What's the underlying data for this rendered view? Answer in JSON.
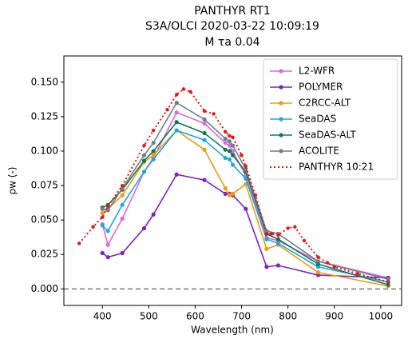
{
  "chart_data": {
    "type": "line",
    "title": [
      "PANTHYR RT1",
      "S3A/OLCI 2020-03-22 10:09:19",
      "M τa 0.04"
    ],
    "x_label": "Wavelength (nm)",
    "y_label": "ρw (-)",
    "xlim": [
      317,
      1045
    ],
    "ylim": [
      -0.012,
      0.169
    ],
    "xticks": [
      400,
      500,
      600,
      700,
      800,
      900,
      1000
    ],
    "yticks": [
      {
        "value": 0,
        "label": "0.000"
      },
      {
        "value": 0.025,
        "label": "0.025"
      },
      {
        "value": 0.05,
        "label": "0.050"
      },
      {
        "value": 0.075,
        "label": "0.075"
      },
      {
        "value": 0.1,
        "label": "0.100"
      },
      {
        "value": 0.125,
        "label": "0.125"
      },
      {
        "value": 0.15,
        "label": "0.150"
      }
    ],
    "hline": 0,
    "legend": "upper right",
    "series": [
      {
        "name": "L2-WFR",
        "color": "#dd66dd",
        "style": "solid",
        "x": [
          400,
          412,
          443,
          490,
          510,
          560,
          620,
          665,
          674,
          681,
          709,
          754,
          779,
          865,
          1016
        ],
        "values": [
          0.047,
          0.032,
          0.051,
          0.085,
          0.095,
          0.128,
          0.12,
          0.106,
          0.104,
          0.1,
          0.082,
          0.037,
          0.035,
          0.02,
          0.008
        ]
      },
      {
        "name": "POLYMER",
        "color": "#7b22c8",
        "style": "solid",
        "x": [
          400,
          412,
          443,
          490,
          510,
          560,
          620,
          665,
          674,
          681,
          709,
          754,
          779,
          865,
          1016
        ],
        "values": [
          0.026,
          0.023,
          0.026,
          0.044,
          0.054,
          0.083,
          0.079,
          0.069,
          0.069,
          0.068,
          0.058,
          0.016,
          0.017,
          0.01,
          0.008
        ]
      },
      {
        "name": "C2RCC-ALT",
        "color": "#f29b0b",
        "style": "solid",
        "x": [
          400,
          412,
          443,
          490,
          510,
          560,
          620,
          665,
          674,
          681,
          709,
          754,
          779,
          865,
          1016
        ],
        "values": [
          0.055,
          0.058,
          0.068,
          0.092,
          0.097,
          0.115,
          0.101,
          0.073,
          0.068,
          0.069,
          0.076,
          0.029,
          0.032,
          0.012,
          0.002
        ]
      },
      {
        "name": "SeaDAS",
        "color": "#1fa8d8",
        "style": "solid",
        "x": [
          400,
          412,
          443,
          490,
          510,
          560,
          620,
          665,
          674,
          681,
          709,
          754,
          779,
          865,
          1016
        ],
        "values": [
          0.046,
          0.042,
          0.061,
          0.085,
          0.094,
          0.115,
          0.108,
          0.095,
          0.094,
          0.09,
          0.08,
          0.036,
          0.033,
          0.016,
          0.005
        ]
      },
      {
        "name": "SeaDAS-ALT",
        "color": "#0e7a55",
        "style": "solid",
        "x": [
          400,
          412,
          443,
          490,
          510,
          560,
          620,
          665,
          674,
          681,
          709,
          754,
          779,
          865,
          1016
        ],
        "values": [
          0.059,
          0.061,
          0.072,
          0.093,
          0.1,
          0.121,
          0.113,
          0.101,
          0.1,
          0.097,
          0.085,
          0.04,
          0.036,
          0.018,
          0.003
        ]
      },
      {
        "name": "ACOLITE",
        "color": "#6e7f8c",
        "style": "solid",
        "x": [
          400,
          412,
          443,
          490,
          510,
          560,
          620,
          665,
          674,
          681,
          709,
          754,
          779,
          865,
          1016
        ],
        "values": [
          0.058,
          0.057,
          0.073,
          0.097,
          0.106,
          0.135,
          0.123,
          0.109,
          0.107,
          0.104,
          0.087,
          0.042,
          0.04,
          0.02,
          0.007
        ]
      },
      {
        "name": "PANTHYR 10:21",
        "color": "#ee1111",
        "style": "dotted",
        "x": [
          350,
          380,
          400,
          412,
          443,
          490,
          510,
          540,
          560,
          575,
          590,
          620,
          640,
          665,
          674,
          681,
          700,
          709,
          730,
          754,
          765,
          779,
          800,
          815,
          835,
          865,
          885,
          900,
          950,
          1016
        ],
        "values": [
          0.033,
          0.045,
          0.052,
          0.06,
          0.075,
          0.104,
          0.115,
          0.13,
          0.141,
          0.145,
          0.143,
          0.129,
          0.127,
          0.114,
          0.111,
          0.11,
          0.097,
          0.089,
          0.068,
          0.04,
          0.04,
          0.039,
          0.044,
          0.045,
          0.035,
          0.023,
          0.019,
          0.016,
          0.011,
          0.005
        ]
      }
    ]
  }
}
